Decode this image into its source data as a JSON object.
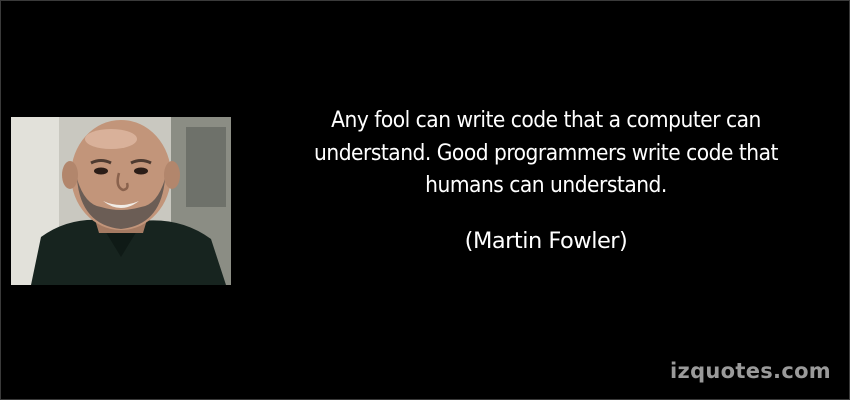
{
  "quote": {
    "lines": [
      "Any fool can write code that a computer can",
      "understand. Good programmers write code that",
      "humans can understand."
    ],
    "author": "(Martin Fowler)"
  },
  "portrait": {
    "icon": "person-portrait-icon"
  },
  "watermark": {
    "text": "izquotes.com"
  },
  "colors": {
    "background": "#000000",
    "text": "#ffffff",
    "watermark": "#9a9a9a"
  }
}
